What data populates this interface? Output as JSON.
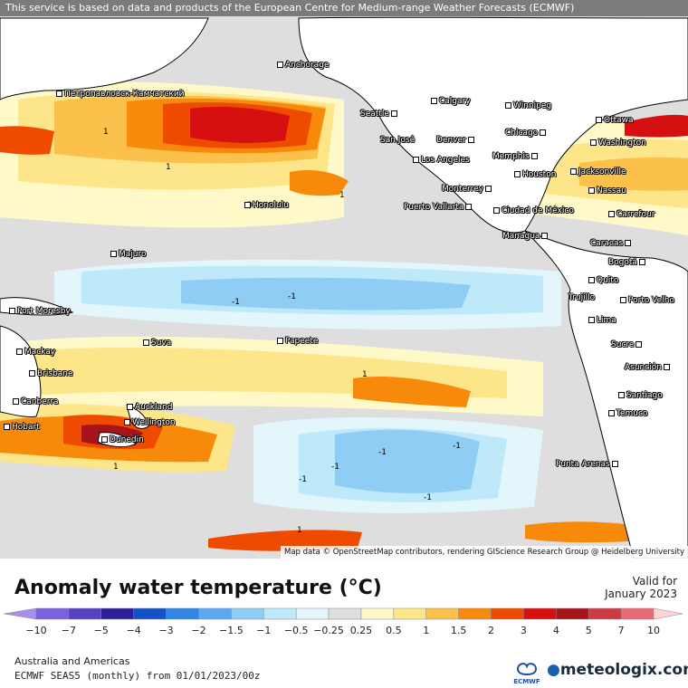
{
  "header": {
    "attribution_top": "This service is based on data and products of the European Centre for Medium-range Weather Forecasts (ECMWF)"
  },
  "map": {
    "attribution_bottom": "Map data © OpenStreetMap contributors, rendering GIScience Research Group @ Heidelberg University",
    "cities": [
      "Anchorage",
      "Петропавловск-Камчатский",
      "Calgary",
      "Winnipeg",
      "Seattle",
      "Ottawa",
      "Chicago",
      "Washington",
      "San José",
      "Denver",
      "Memphis",
      "Los Angeles",
      "Jacksonville",
      "Houston",
      "Nassau",
      "Honolulu",
      "Monterrey",
      "Puerto Vallarta",
      "Ciudad de México",
      "Carrefour",
      "Managua",
      "Majuro",
      "Caracas",
      "Bogotá",
      "Quito",
      "Port Moresby",
      "Trujillo",
      "Porto Velho",
      "Lima",
      "Suva",
      "Papeete",
      "Mackay",
      "Sucre",
      "Brisbane",
      "Asunción",
      "Santiago",
      "Canberra",
      "Auckland",
      "Wellington",
      "Temuco",
      "Hobart",
      "Dunedin",
      "Punta Arenas"
    ],
    "contour_labels": [
      "1",
      "-1"
    ]
  },
  "legend": {
    "title": "Anomaly water temperature (°C)",
    "ticks": [
      "−10",
      "−7",
      "−5",
      "−4",
      "−3",
      "−2",
      "−1.5",
      "−1",
      "−0.5",
      "−0.25",
      "0.25",
      "0.5",
      "1",
      "1.5",
      "2",
      "3",
      "4",
      "5",
      "7",
      "10"
    ],
    "colors": [
      "#a98ef0",
      "#7b5fe0",
      "#5640c8",
      "#2e1d9c",
      "#1450c8",
      "#2f86e6",
      "#5aa8f0",
      "#8fcdf4",
      "#bde9f8",
      "#e3f6fc",
      "#dedede",
      "#fff8c8",
      "#fde58a",
      "#fbc14a",
      "#f78a0a",
      "#ef4b00",
      "#d61010",
      "#a8141c",
      "#cc3a44",
      "#e86a74",
      "#f5a0a6",
      "#fcd4d8"
    ]
  },
  "valid": {
    "label": "Valid for",
    "date": "January 2023"
  },
  "footer": {
    "region": "Australia and Americas",
    "model": "ECMWF SEAS5 (monthly) from 01/01/2023/00z",
    "brand": "meteologix.com",
    "ecmwf": "ECMWF"
  }
}
